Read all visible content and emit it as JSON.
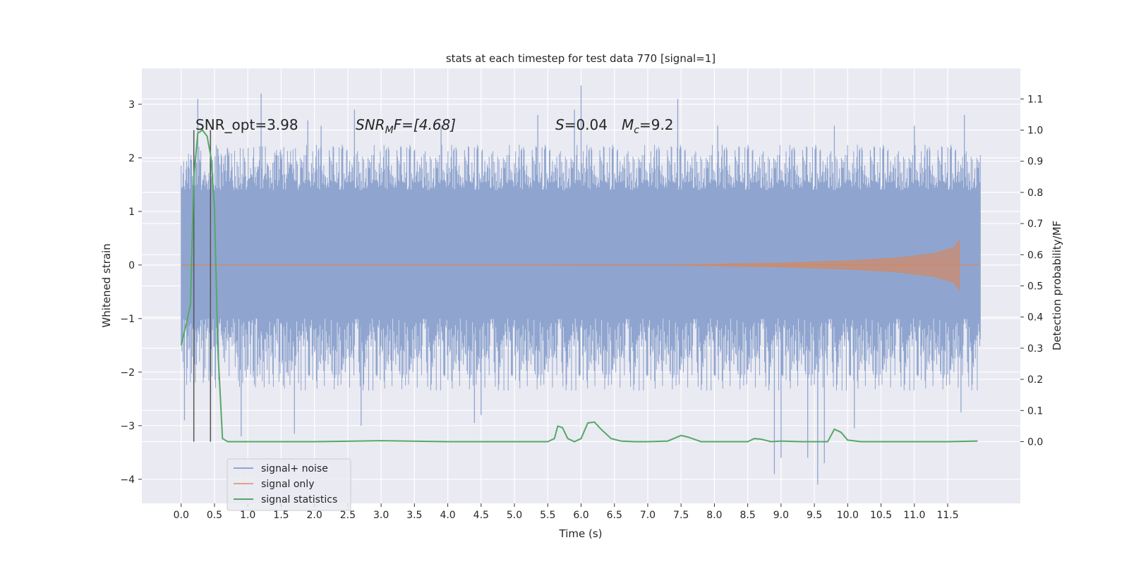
{
  "chart_data": {
    "type": "line",
    "title": "stats at each timestep for test data 770 [signal=1]",
    "xlabel": "Time (s)",
    "ylabel": "Whitened strain",
    "y2label": "Detection probability/MF",
    "xlim": [
      -0.59,
      12.59
    ],
    "ylim": [
      -4.45,
      3.67
    ],
    "y2lim": [
      -0.198,
      1.198
    ],
    "x_ticks": [
      "0.0",
      "0.5",
      "1.0",
      "1.5",
      "2.0",
      "2.5",
      "3.0",
      "3.5",
      "4.0",
      "4.5",
      "5.0",
      "5.5",
      "6.0",
      "6.5",
      "7.0",
      "7.5",
      "8.0",
      "8.5",
      "9.0",
      "9.5",
      "10.0",
      "10.5",
      "11.0",
      "11.5"
    ],
    "y_ticks": [
      "3",
      "2",
      "1",
      "0",
      "−1",
      "−2",
      "−3",
      "−4"
    ],
    "y2_ticks": [
      "1.1",
      "1.0",
      "0.9",
      "0.8",
      "0.7",
      "0.6",
      "0.5",
      "0.4",
      "0.3",
      "0.2",
      "0.1",
      "0.0"
    ],
    "grid": true,
    "legend_position": "lower-left",
    "annotations": {
      "snr_opt": "SNR_opt=3.98",
      "snr_mf_main": "SNR",
      "snr_mf_sub": "M",
      "snr_mf_rest": "F=[4.68]",
      "s_main": "S",
      "s_rest": "=0.04",
      "mc_main": "M",
      "mc_sub": "c",
      "mc_rest": "=9.2"
    },
    "vlines_x": [
      0.19,
      0.44
    ],
    "series": [
      {
        "name": "signal+ noise",
        "color": "#8fa5cf",
        "x_range": [
          0.0,
          11.99
        ],
        "band": {
          "core_low": -1.0,
          "core_high": 1.4,
          "typical_peak_high": 2.0,
          "typical_peak_low": -2.0
        },
        "spikes": [
          {
            "x": 0.25,
            "y": 3.1
          },
          {
            "x": 1.2,
            "y": 3.2
          },
          {
            "x": 1.9,
            "y": 2.7
          },
          {
            "x": 2.1,
            "y": 2.6
          },
          {
            "x": 2.6,
            "y": 2.9
          },
          {
            "x": 3.9,
            "y": 2.6
          },
          {
            "x": 5.35,
            "y": 2.8
          },
          {
            "x": 5.9,
            "y": 2.9
          },
          {
            "x": 6.0,
            "y": 3.35
          },
          {
            "x": 7.45,
            "y": 3.1
          },
          {
            "x": 8.05,
            "y": 2.6
          },
          {
            "x": 9.8,
            "y": 2.6
          },
          {
            "x": 11.0,
            "y": 2.6
          },
          {
            "x": 11.75,
            "y": 2.8
          },
          {
            "x": 0.05,
            "y": -2.9
          },
          {
            "x": 0.9,
            "y": -3.2
          },
          {
            "x": 1.7,
            "y": -3.15
          },
          {
            "x": 2.7,
            "y": -3.0
          },
          {
            "x": 4.4,
            "y": -2.95
          },
          {
            "x": 4.5,
            "y": -2.8
          },
          {
            "x": 8.9,
            "y": -3.9
          },
          {
            "x": 9.0,
            "y": -3.6
          },
          {
            "x": 9.4,
            "y": -3.6
          },
          {
            "x": 9.55,
            "y": -4.1
          },
          {
            "x": 9.65,
            "y": -3.7
          },
          {
            "x": 10.1,
            "y": -3.05
          },
          {
            "x": 11.7,
            "y": -2.75
          }
        ]
      },
      {
        "name": "signal only",
        "color": "#dd8452",
        "x_range": [
          0.0,
          11.99
        ],
        "envelope": [
          [
            0.0,
            0.0
          ],
          [
            7.5,
            0.005
          ],
          [
            9.0,
            0.04
          ],
          [
            10.0,
            0.08
          ],
          [
            10.8,
            0.14
          ],
          [
            11.3,
            0.22
          ],
          [
            11.6,
            0.33
          ],
          [
            11.68,
            0.48
          ],
          [
            11.7,
            0.0
          ]
        ]
      },
      {
        "name": "signal statistics",
        "color": "#55a868",
        "axis": "right",
        "x": [
          0.0,
          0.08,
          0.14,
          0.19,
          0.25,
          0.32,
          0.39,
          0.45,
          0.5,
          0.55,
          0.62,
          0.7,
          1.0,
          2.0,
          3.0,
          4.0,
          5.0,
          5.5,
          5.6,
          5.65,
          5.72,
          5.8,
          5.9,
          6.0,
          6.1,
          6.2,
          6.3,
          6.45,
          6.6,
          6.8,
          7.0,
          7.3,
          7.5,
          7.6,
          7.8,
          8.0,
          8.5,
          8.6,
          8.7,
          8.85,
          9.0,
          9.3,
          9.7,
          9.8,
          9.9,
          10.0,
          10.2,
          10.5,
          11.0,
          11.5,
          11.95
        ],
        "y": [
          0.31,
          0.38,
          0.44,
          0.85,
          0.99,
          1.0,
          0.98,
          0.91,
          0.75,
          0.3,
          0.01,
          0.0,
          0.0,
          0.0,
          0.003,
          0.0,
          0.0,
          0.0,
          0.01,
          0.05,
          0.045,
          0.01,
          0.0,
          0.01,
          0.06,
          0.063,
          0.04,
          0.01,
          0.002,
          0.0,
          0.0,
          0.002,
          0.02,
          0.015,
          0.0,
          0.0,
          0.0,
          0.01,
          0.008,
          0.0,
          0.002,
          0.0,
          0.0,
          0.04,
          0.03,
          0.005,
          0.0,
          0.0,
          0.0,
          0.0,
          0.002
        ]
      }
    ]
  }
}
